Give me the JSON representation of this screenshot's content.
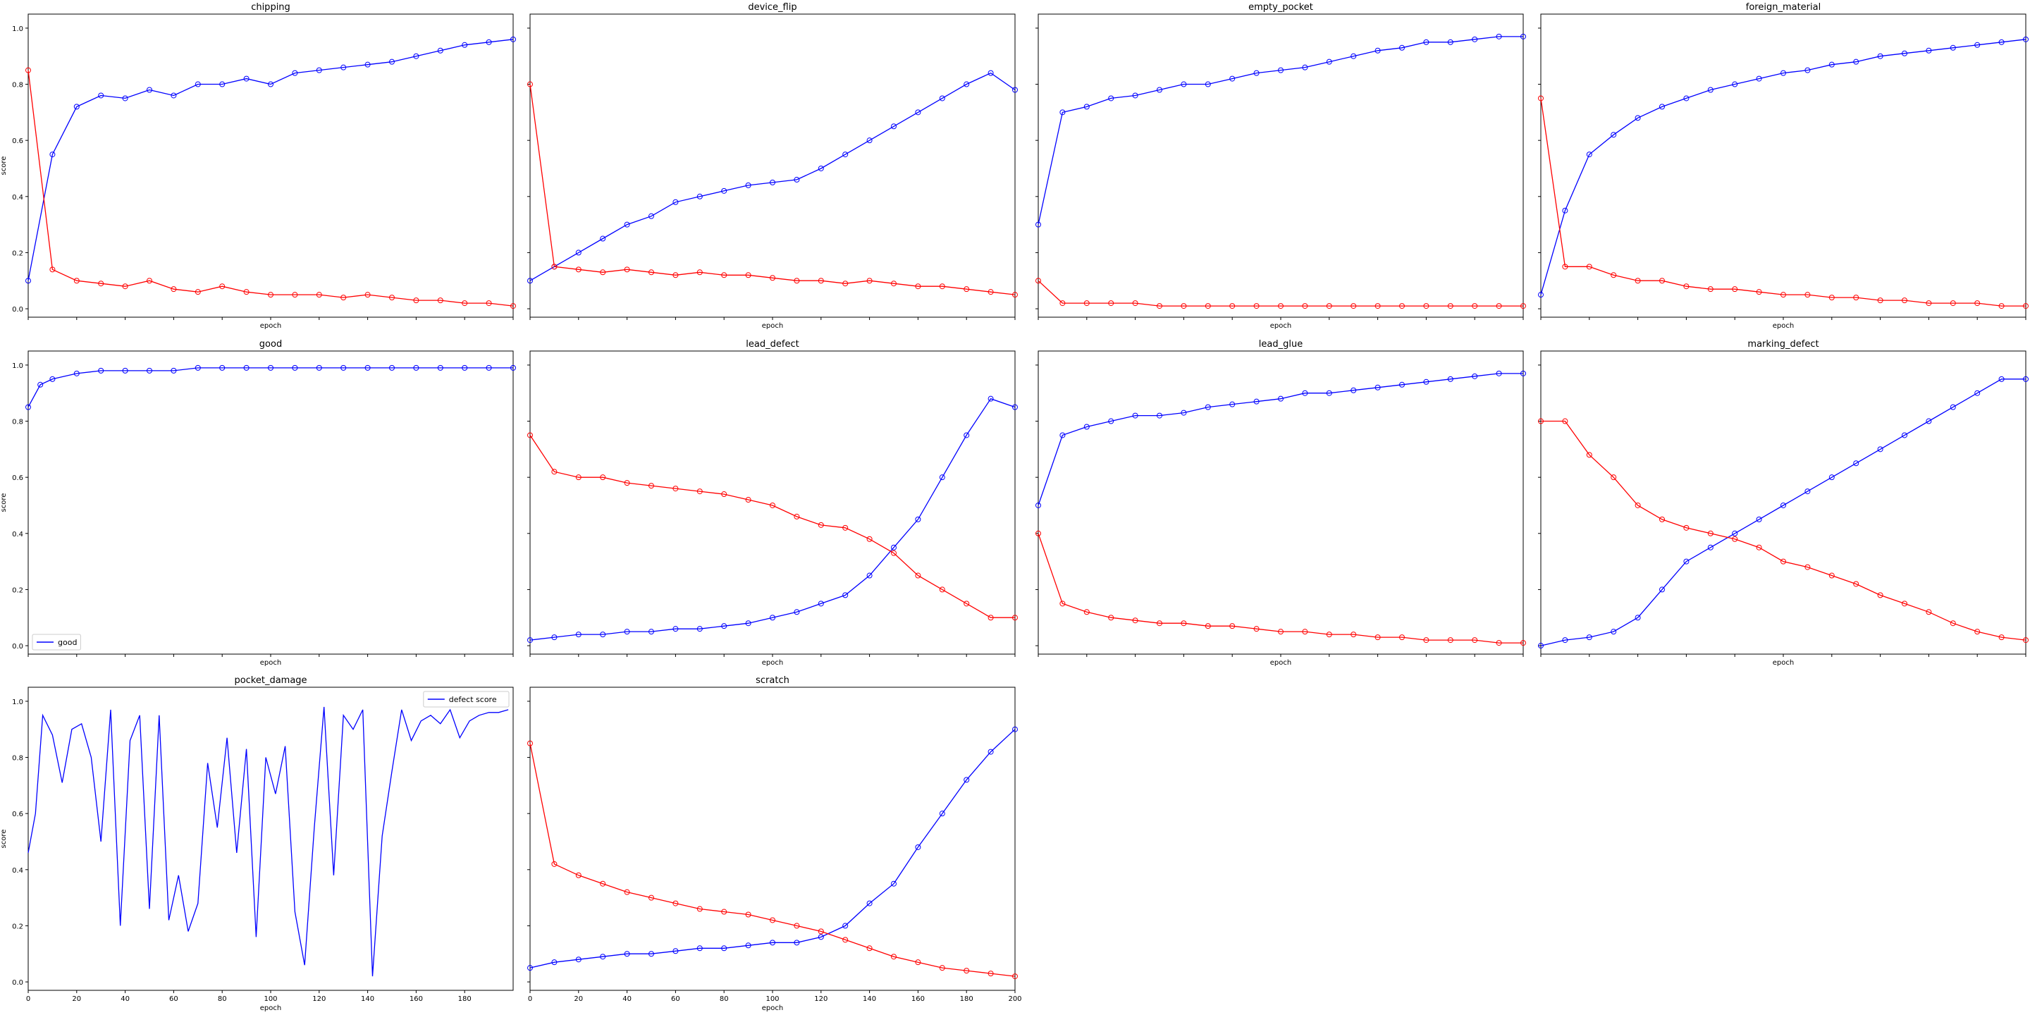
{
  "figure": {
    "y_axis_label": "score",
    "x_axis_label": "epoch"
  },
  "colors": {
    "good_series": "#0000ff",
    "defect_series": "#ff0000"
  },
  "chart_data": [
    {
      "type": "line",
      "title": "chipping",
      "xlabel": "epoch",
      "ylabel": "score",
      "ylim": [
        0,
        1.05
      ],
      "xlim": [
        0,
        200
      ],
      "show_x_ticks": false,
      "series": [
        {
          "color": "#0000ff",
          "x": [
            0,
            10,
            20,
            30,
            40,
            50,
            60,
            70,
            80,
            90,
            100,
            110,
            120,
            130,
            140,
            150,
            160,
            170,
            180,
            190,
            200
          ],
          "values": [
            0.1,
            0.55,
            0.72,
            0.76,
            0.75,
            0.78,
            0.76,
            0.8,
            0.8,
            0.82,
            0.8,
            0.84,
            0.85,
            0.86,
            0.87,
            0.88,
            0.9,
            0.92,
            0.94,
            0.95,
            0.96
          ]
        },
        {
          "color": "#ff0000",
          "x": [
            0,
            10,
            20,
            30,
            40,
            50,
            60,
            70,
            80,
            90,
            100,
            110,
            120,
            130,
            140,
            150,
            160,
            170,
            180,
            190,
            200
          ],
          "values": [
            0.85,
            0.14,
            0.1,
            0.09,
            0.08,
            0.1,
            0.07,
            0.06,
            0.08,
            0.06,
            0.05,
            0.05,
            0.05,
            0.04,
            0.05,
            0.04,
            0.03,
            0.03,
            0.02,
            0.02,
            0.01
          ]
        }
      ]
    },
    {
      "type": "line",
      "title": "device_flip",
      "xlabel": "epoch",
      "ylabel": "score",
      "ylim": [
        0,
        1.05
      ],
      "xlim": [
        0,
        200
      ],
      "show_x_ticks": false,
      "series": [
        {
          "color": "#0000ff",
          "x": [
            0,
            10,
            20,
            30,
            40,
            50,
            60,
            70,
            80,
            90,
            100,
            110,
            120,
            130,
            140,
            150,
            160,
            170,
            180,
            190,
            200
          ],
          "values": [
            0.1,
            0.15,
            0.2,
            0.25,
            0.3,
            0.33,
            0.38,
            0.4,
            0.42,
            0.44,
            0.45,
            0.46,
            0.5,
            0.55,
            0.6,
            0.65,
            0.7,
            0.75,
            0.8,
            0.84,
            0.78
          ]
        },
        {
          "color": "#ff0000",
          "x": [
            0,
            10,
            20,
            30,
            40,
            50,
            60,
            70,
            80,
            90,
            100,
            110,
            120,
            130,
            140,
            150,
            160,
            170,
            180,
            190,
            200
          ],
          "values": [
            0.8,
            0.15,
            0.14,
            0.13,
            0.14,
            0.13,
            0.12,
            0.13,
            0.12,
            0.12,
            0.11,
            0.1,
            0.1,
            0.09,
            0.1,
            0.09,
            0.08,
            0.08,
            0.07,
            0.06,
            0.05
          ]
        }
      ]
    },
    {
      "type": "line",
      "title": "empty_pocket",
      "xlabel": "epoch",
      "ylabel": "score",
      "ylim": [
        0,
        1.05
      ],
      "xlim": [
        0,
        200
      ],
      "show_x_ticks": false,
      "series": [
        {
          "color": "#0000ff",
          "x": [
            0,
            10,
            20,
            30,
            40,
            50,
            60,
            70,
            80,
            90,
            100,
            110,
            120,
            130,
            140,
            150,
            160,
            170,
            180,
            190,
            200
          ],
          "values": [
            0.3,
            0.7,
            0.72,
            0.75,
            0.76,
            0.78,
            0.8,
            0.8,
            0.82,
            0.84,
            0.85,
            0.86,
            0.88,
            0.9,
            0.92,
            0.93,
            0.95,
            0.95,
            0.96,
            0.97,
            0.97
          ]
        },
        {
          "color": "#ff0000",
          "x": [
            0,
            10,
            20,
            30,
            40,
            50,
            60,
            70,
            80,
            90,
            100,
            110,
            120,
            130,
            140,
            150,
            160,
            170,
            180,
            190,
            200
          ],
          "values": [
            0.1,
            0.02,
            0.02,
            0.02,
            0.02,
            0.01,
            0.01,
            0.01,
            0.01,
            0.01,
            0.01,
            0.01,
            0.01,
            0.01,
            0.01,
            0.01,
            0.01,
            0.01,
            0.01,
            0.01,
            0.01
          ]
        }
      ]
    },
    {
      "type": "line",
      "title": "foreign_material",
      "xlabel": "epoch",
      "ylabel": "score",
      "ylim": [
        0,
        1.05
      ],
      "xlim": [
        0,
        200
      ],
      "show_x_ticks": false,
      "series": [
        {
          "color": "#0000ff",
          "x": [
            0,
            10,
            20,
            30,
            40,
            50,
            60,
            70,
            80,
            90,
            100,
            110,
            120,
            130,
            140,
            150,
            160,
            170,
            180,
            190,
            200
          ],
          "values": [
            0.05,
            0.35,
            0.55,
            0.62,
            0.68,
            0.72,
            0.75,
            0.78,
            0.8,
            0.82,
            0.84,
            0.85,
            0.87,
            0.88,
            0.9,
            0.91,
            0.92,
            0.93,
            0.94,
            0.95,
            0.96
          ]
        },
        {
          "color": "#ff0000",
          "x": [
            0,
            10,
            20,
            30,
            40,
            50,
            60,
            70,
            80,
            90,
            100,
            110,
            120,
            130,
            140,
            150,
            160,
            170,
            180,
            190,
            200
          ],
          "values": [
            0.75,
            0.15,
            0.15,
            0.12,
            0.1,
            0.1,
            0.08,
            0.07,
            0.07,
            0.06,
            0.05,
            0.05,
            0.04,
            0.04,
            0.03,
            0.03,
            0.02,
            0.02,
            0.02,
            0.01,
            0.01
          ]
        }
      ]
    },
    {
      "type": "line",
      "title": "good",
      "xlabel": "epoch",
      "ylabel": "score",
      "ylim": [
        0,
        1.05
      ],
      "xlim": [
        0,
        200
      ],
      "show_x_ticks": false,
      "legend": {
        "position": "lower-left",
        "entries": [
          "good"
        ]
      },
      "series": [
        {
          "name": "good",
          "color": "#0000ff",
          "x": [
            0,
            5,
            10,
            20,
            30,
            40,
            50,
            60,
            70,
            80,
            90,
            100,
            110,
            120,
            130,
            140,
            150,
            160,
            170,
            180,
            190,
            200
          ],
          "values": [
            0.85,
            0.93,
            0.95,
            0.97,
            0.98,
            0.98,
            0.98,
            0.98,
            0.99,
            0.99,
            0.99,
            0.99,
            0.99,
            0.99,
            0.99,
            0.99,
            0.99,
            0.99,
            0.99,
            0.99,
            0.99,
            0.99
          ]
        }
      ]
    },
    {
      "type": "line",
      "title": "lead_defect",
      "xlabel": "epoch",
      "ylabel": "score",
      "ylim": [
        0,
        1.05
      ],
      "xlim": [
        0,
        200
      ],
      "show_x_ticks": false,
      "series": [
        {
          "color": "#0000ff",
          "x": [
            0,
            10,
            20,
            30,
            40,
            50,
            60,
            70,
            80,
            90,
            100,
            110,
            120,
            130,
            140,
            150,
            160,
            170,
            180,
            190,
            200
          ],
          "values": [
            0.02,
            0.03,
            0.04,
            0.04,
            0.05,
            0.05,
            0.06,
            0.06,
            0.07,
            0.08,
            0.1,
            0.12,
            0.15,
            0.18,
            0.25,
            0.35,
            0.45,
            0.6,
            0.75,
            0.88,
            0.85
          ]
        },
        {
          "color": "#ff0000",
          "x": [
            0,
            10,
            20,
            30,
            40,
            50,
            60,
            70,
            80,
            90,
            100,
            110,
            120,
            130,
            140,
            150,
            160,
            170,
            180,
            190,
            200
          ],
          "values": [
            0.75,
            0.62,
            0.6,
            0.6,
            0.58,
            0.57,
            0.56,
            0.55,
            0.54,
            0.52,
            0.5,
            0.46,
            0.43,
            0.42,
            0.38,
            0.33,
            0.25,
            0.2,
            0.15,
            0.1,
            0.1
          ]
        }
      ]
    },
    {
      "type": "line",
      "title": "lead_glue",
      "xlabel": "epoch",
      "ylabel": "score",
      "ylim": [
        0,
        1.05
      ],
      "xlim": [
        0,
        200
      ],
      "show_x_ticks": false,
      "series": [
        {
          "color": "#0000ff",
          "x": [
            0,
            10,
            20,
            30,
            40,
            50,
            60,
            70,
            80,
            90,
            100,
            110,
            120,
            130,
            140,
            150,
            160,
            170,
            180,
            190,
            200
          ],
          "values": [
            0.5,
            0.75,
            0.78,
            0.8,
            0.82,
            0.82,
            0.83,
            0.85,
            0.86,
            0.87,
            0.88,
            0.9,
            0.9,
            0.91,
            0.92,
            0.93,
            0.94,
            0.95,
            0.96,
            0.97,
            0.97
          ]
        },
        {
          "color": "#ff0000",
          "x": [
            0,
            10,
            20,
            30,
            40,
            50,
            60,
            70,
            80,
            90,
            100,
            110,
            120,
            130,
            140,
            150,
            160,
            170,
            180,
            190,
            200
          ],
          "values": [
            0.4,
            0.15,
            0.12,
            0.1,
            0.09,
            0.08,
            0.08,
            0.07,
            0.07,
            0.06,
            0.05,
            0.05,
            0.04,
            0.04,
            0.03,
            0.03,
            0.02,
            0.02,
            0.02,
            0.01,
            0.01
          ]
        }
      ]
    },
    {
      "type": "line",
      "title": "marking_defect",
      "xlabel": "epoch",
      "ylabel": "score",
      "ylim": [
        0,
        1.05
      ],
      "xlim": [
        0,
        200
      ],
      "show_x_ticks": false,
      "series": [
        {
          "color": "#0000ff",
          "x": [
            0,
            10,
            20,
            30,
            40,
            50,
            60,
            70,
            80,
            90,
            100,
            110,
            120,
            130,
            140,
            150,
            160,
            170,
            180,
            190,
            200
          ],
          "values": [
            0.0,
            0.02,
            0.03,
            0.05,
            0.1,
            0.2,
            0.3,
            0.35,
            0.4,
            0.45,
            0.5,
            0.55,
            0.6,
            0.65,
            0.7,
            0.75,
            0.8,
            0.85,
            0.9,
            0.95,
            0.95
          ]
        },
        {
          "color": "#ff0000",
          "x": [
            0,
            10,
            20,
            30,
            40,
            50,
            60,
            70,
            80,
            90,
            100,
            110,
            120,
            130,
            140,
            150,
            160,
            170,
            180,
            190,
            200
          ],
          "values": [
            0.8,
            0.8,
            0.68,
            0.6,
            0.5,
            0.45,
            0.42,
            0.4,
            0.38,
            0.35,
            0.3,
            0.28,
            0.25,
            0.22,
            0.18,
            0.15,
            0.12,
            0.08,
            0.05,
            0.03,
            0.02
          ]
        }
      ]
    },
    {
      "type": "line",
      "title": "pocket_damage",
      "xlabel": "epoch",
      "ylabel": "score",
      "ylim": [
        0,
        1.05
      ],
      "xlim": [
        0,
        200
      ],
      "show_x_ticks": true,
      "x_ticks": [
        0,
        20,
        40,
        60,
        80,
        100,
        120,
        140,
        160,
        180
      ],
      "legend": {
        "position": "top-right",
        "entries": [
          "defect score"
        ]
      },
      "series": [
        {
          "name": "defect score",
          "color": "#0000ff",
          "x": [
            0,
            3,
            6,
            10,
            14,
            18,
            22,
            26,
            30,
            34,
            38,
            42,
            46,
            50,
            54,
            58,
            62,
            66,
            70,
            74,
            78,
            82,
            86,
            90,
            94,
            98,
            102,
            106,
            110,
            114,
            118,
            122,
            126,
            130,
            134,
            138,
            142,
            146,
            150,
            154,
            158,
            162,
            166,
            170,
            174,
            178,
            182,
            186,
            190,
            194,
            198
          ],
          "values": [
            0.46,
            0.6,
            0.95,
            0.88,
            0.71,
            0.9,
            0.92,
            0.8,
            0.5,
            0.97,
            0.2,
            0.86,
            0.95,
            0.26,
            0.95,
            0.22,
            0.38,
            0.18,
            0.28,
            0.78,
            0.55,
            0.87,
            0.46,
            0.83,
            0.16,
            0.8,
            0.67,
            0.84,
            0.25,
            0.06,
            0.55,
            0.98,
            0.38,
            0.95,
            0.9,
            0.97,
            0.02,
            0.52,
            0.75,
            0.97,
            0.86,
            0.93,
            0.95,
            0.92,
            0.97,
            0.87,
            0.93,
            0.95,
            0.96,
            0.96,
            0.97
          ]
        }
      ]
    },
    {
      "type": "line",
      "title": "scratch",
      "xlabel": "epoch",
      "ylabel": "score",
      "ylim": [
        0,
        1.05
      ],
      "xlim": [
        0,
        200
      ],
      "show_x_ticks": true,
      "x_ticks": [
        0,
        20,
        40,
        60,
        80,
        100,
        120,
        140,
        160,
        180,
        200
      ],
      "series": [
        {
          "color": "#0000ff",
          "x": [
            0,
            10,
            20,
            30,
            40,
            50,
            60,
            70,
            80,
            90,
            100,
            110,
            120,
            130,
            140,
            150,
            160,
            170,
            180,
            190,
            200
          ],
          "values": [
            0.05,
            0.07,
            0.08,
            0.09,
            0.1,
            0.1,
            0.11,
            0.12,
            0.12,
            0.13,
            0.14,
            0.14,
            0.16,
            0.2,
            0.28,
            0.35,
            0.48,
            0.6,
            0.72,
            0.82,
            0.9
          ]
        },
        {
          "color": "#ff0000",
          "x": [
            0,
            10,
            20,
            30,
            40,
            50,
            60,
            70,
            80,
            90,
            100,
            110,
            120,
            130,
            140,
            150,
            160,
            170,
            180,
            190,
            200
          ],
          "values": [
            0.85,
            0.42,
            0.38,
            0.35,
            0.32,
            0.3,
            0.28,
            0.26,
            0.25,
            0.24,
            0.22,
            0.2,
            0.18,
            0.15,
            0.12,
            0.09,
            0.07,
            0.05,
            0.04,
            0.03,
            0.02
          ]
        }
      ]
    }
  ]
}
